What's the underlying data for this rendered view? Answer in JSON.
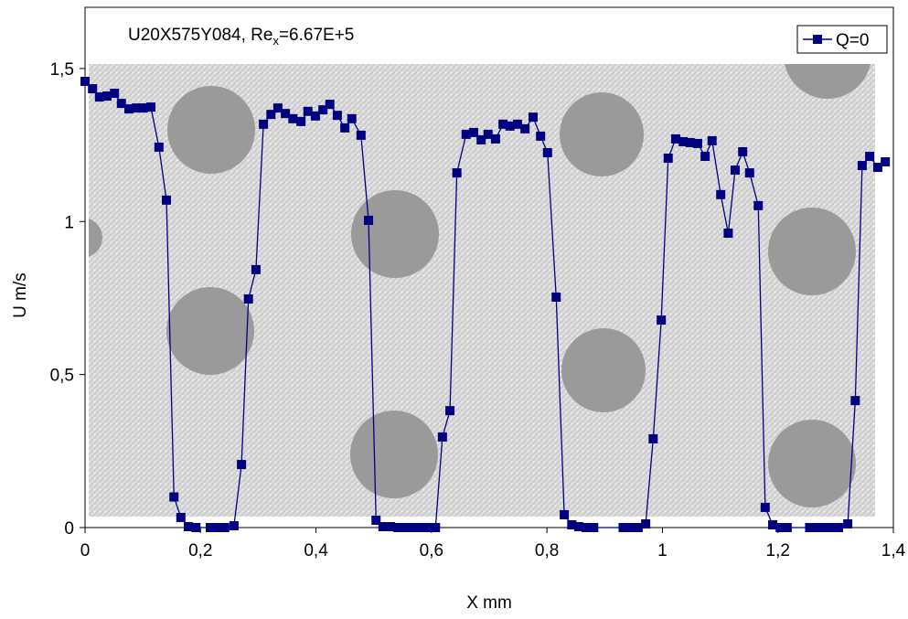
{
  "chart_data": {
    "type": "line",
    "annotation": {
      "prefix": "U20X575Y084, Re",
      "subscript": "x",
      "suffix": "=6.67E+5"
    },
    "xlabel": "X mm",
    "ylabel": "U m/s",
    "x": [
      0,
      0.013,
      0.025,
      0.038,
      0.051,
      0.063,
      0.076,
      0.089,
      0.101,
      0.114,
      0.128,
      0.141,
      0.154,
      0.166,
      0.179,
      0.192,
      0.217,
      0.23,
      0.242,
      0.258,
      0.271,
      0.283,
      0.296,
      0.309,
      0.322,
      0.334,
      0.347,
      0.36,
      0.374,
      0.386,
      0.399,
      0.412,
      0.424,
      0.437,
      0.45,
      0.462,
      0.478,
      0.491,
      0.504,
      0.516,
      0.529,
      0.542,
      0.554,
      0.567,
      0.58,
      0.594,
      0.607,
      0.619,
      0.632,
      0.644,
      0.66,
      0.673,
      0.686,
      0.698,
      0.711,
      0.724,
      0.736,
      0.749,
      0.762,
      0.776,
      0.789,
      0.801,
      0.816,
      0.83,
      0.843,
      0.855,
      0.868,
      0.881,
      0.932,
      0.945,
      0.958,
      0.971,
      0.984,
      0.998,
      1.01,
      1.023,
      1.036,
      1.048,
      1.061,
      1.074,
      1.086,
      1.101,
      1.114,
      1.126,
      1.139,
      1.151,
      1.166,
      1.178,
      1.191,
      1.204,
      1.216,
      1.255,
      1.267,
      1.28,
      1.293,
      1.305,
      1.321,
      1.334,
      1.346,
      1.359,
      1.373,
      1.386
    ],
    "series": [
      {
        "name": "Q=0",
        "color": "#000080",
        "values": [
          1.458,
          1.434,
          1.407,
          1.41,
          1.419,
          1.386,
          1.368,
          1.371,
          1.371,
          1.374,
          1.243,
          1.07,
          0.1,
          0.033,
          0.003,
          0,
          0,
          0,
          0,
          0.006,
          0.206,
          0.747,
          0.843,
          1.318,
          1.35,
          1.371,
          1.353,
          1.336,
          1.327,
          1.36,
          1.345,
          1.365,
          1.383,
          1.347,
          1.306,
          1.336,
          1.282,
          1.004,
          0.024,
          0.003,
          0.003,
          0,
          0,
          0,
          0,
          0,
          0,
          0.296,
          0.382,
          1.159,
          1.285,
          1.291,
          1.267,
          1.285,
          1.27,
          1.318,
          1.312,
          1.318,
          1.303,
          1.341,
          1.279,
          1.225,
          0.753,
          0.042,
          0.009,
          0.003,
          0,
          0,
          0,
          0,
          0,
          0.012,
          0.29,
          0.678,
          1.207,
          1.27,
          1.261,
          1.258,
          1.255,
          1.213,
          1.264,
          1.088,
          0.962,
          1.168,
          1.228,
          1.159,
          1.052,
          0.066,
          0.009,
          0,
          0,
          0,
          0,
          0,
          0,
          0,
          0.012,
          0.415,
          1.183,
          1.213,
          1.177,
          1.195
        ]
      }
    ],
    "xlim": [
      0,
      1.4
    ],
    "xticks": [
      0,
      {
        "value": 0.2,
        "label": "0,2"
      },
      {
        "value": 0.4,
        "label": "0,4"
      },
      {
        "value": 0.6,
        "label": "0,6"
      },
      {
        "value": 0.8,
        "label": "0,8"
      },
      1,
      {
        "value": 1.2,
        "label": "1,2"
      },
      {
        "value": 1.4,
        "label": "1,4"
      }
    ],
    "ylim": [
      0,
      1.7
    ],
    "yticks": [
      0,
      {
        "value": 0.5,
        "label": "0,5"
      },
      1,
      {
        "value": 1.5,
        "label": "1,5"
      }
    ],
    "legend": "top-right"
  }
}
